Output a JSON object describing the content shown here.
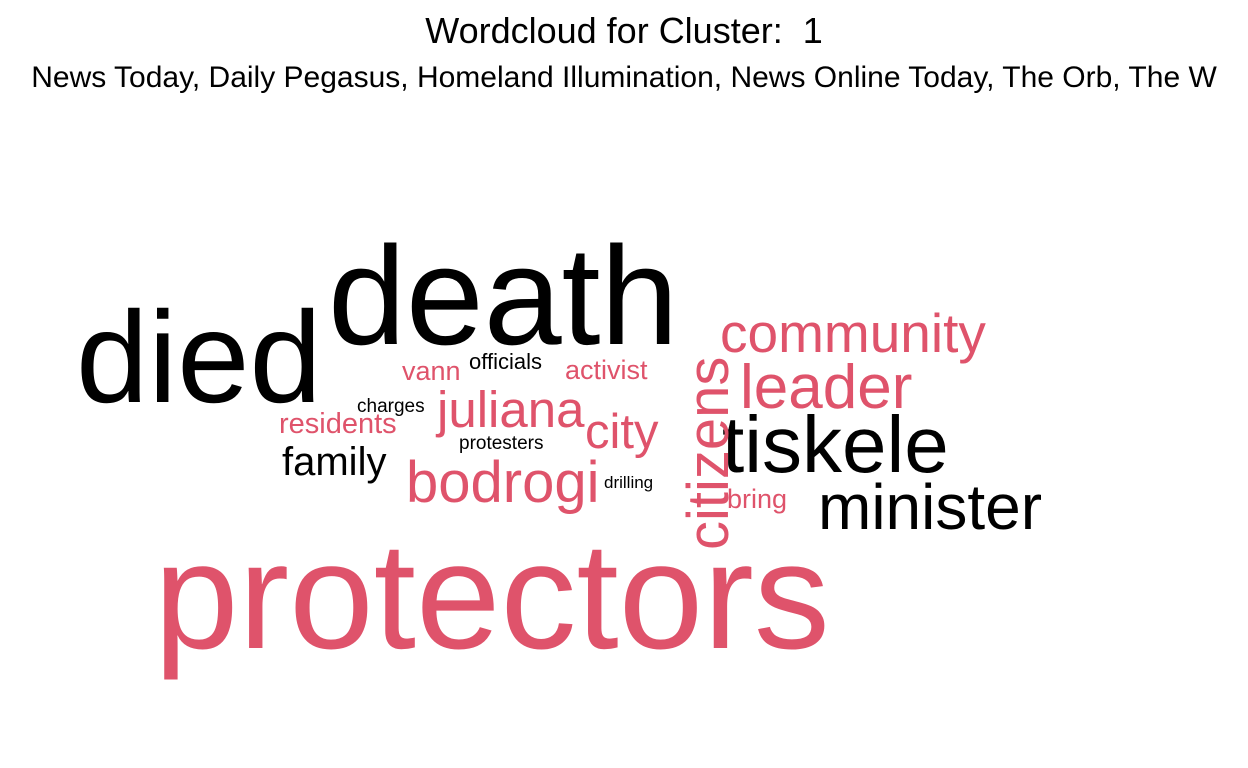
{
  "chart_data": {
    "type": "wordcloud",
    "title": "Wordcloud for Cluster:  1",
    "subtitle": "News Today, Daily Pegasus, Homeland Illumination, News Online Today, The Orb, The W",
    "colors": {
      "group_a": "#000000",
      "group_b": "#DF536B"
    },
    "words": [
      {
        "text": "protectors",
        "group": "group_b",
        "weight": 10
      },
      {
        "text": "death",
        "group": "group_a",
        "weight": 8.2
      },
      {
        "text": "died",
        "group": "group_a",
        "weight": 7.8
      },
      {
        "text": "tiskele",
        "group": "group_a",
        "weight": 4.8
      },
      {
        "text": "citizens",
        "group": "group_b",
        "weight": 4.4
      },
      {
        "text": "minister",
        "group": "group_a",
        "weight": 4.2
      },
      {
        "text": "leader",
        "group": "group_b",
        "weight": 4.1
      },
      {
        "text": "community",
        "group": "group_b",
        "weight": 3.7
      },
      {
        "text": "bodrogi",
        "group": "group_b",
        "weight": 3.9
      },
      {
        "text": "juliana",
        "group": "group_b",
        "weight": 3.4
      },
      {
        "text": "city",
        "group": "group_b",
        "weight": 3.3
      },
      {
        "text": "family",
        "group": "group_a",
        "weight": 3.0
      },
      {
        "text": "residents",
        "group": "group_b",
        "weight": 2.0
      },
      {
        "text": "activist",
        "group": "group_b",
        "weight": 1.9
      },
      {
        "text": "vann",
        "group": "group_b",
        "weight": 1.8
      },
      {
        "text": "bring",
        "group": "group_b",
        "weight": 1.8
      },
      {
        "text": "officials",
        "group": "group_a",
        "weight": 1.6
      },
      {
        "text": "charges",
        "group": "group_a",
        "weight": 1.4
      },
      {
        "text": "protesters",
        "group": "group_a",
        "weight": 1.4
      },
      {
        "text": "drilling",
        "group": "group_a",
        "weight": 1.3
      }
    ]
  }
}
